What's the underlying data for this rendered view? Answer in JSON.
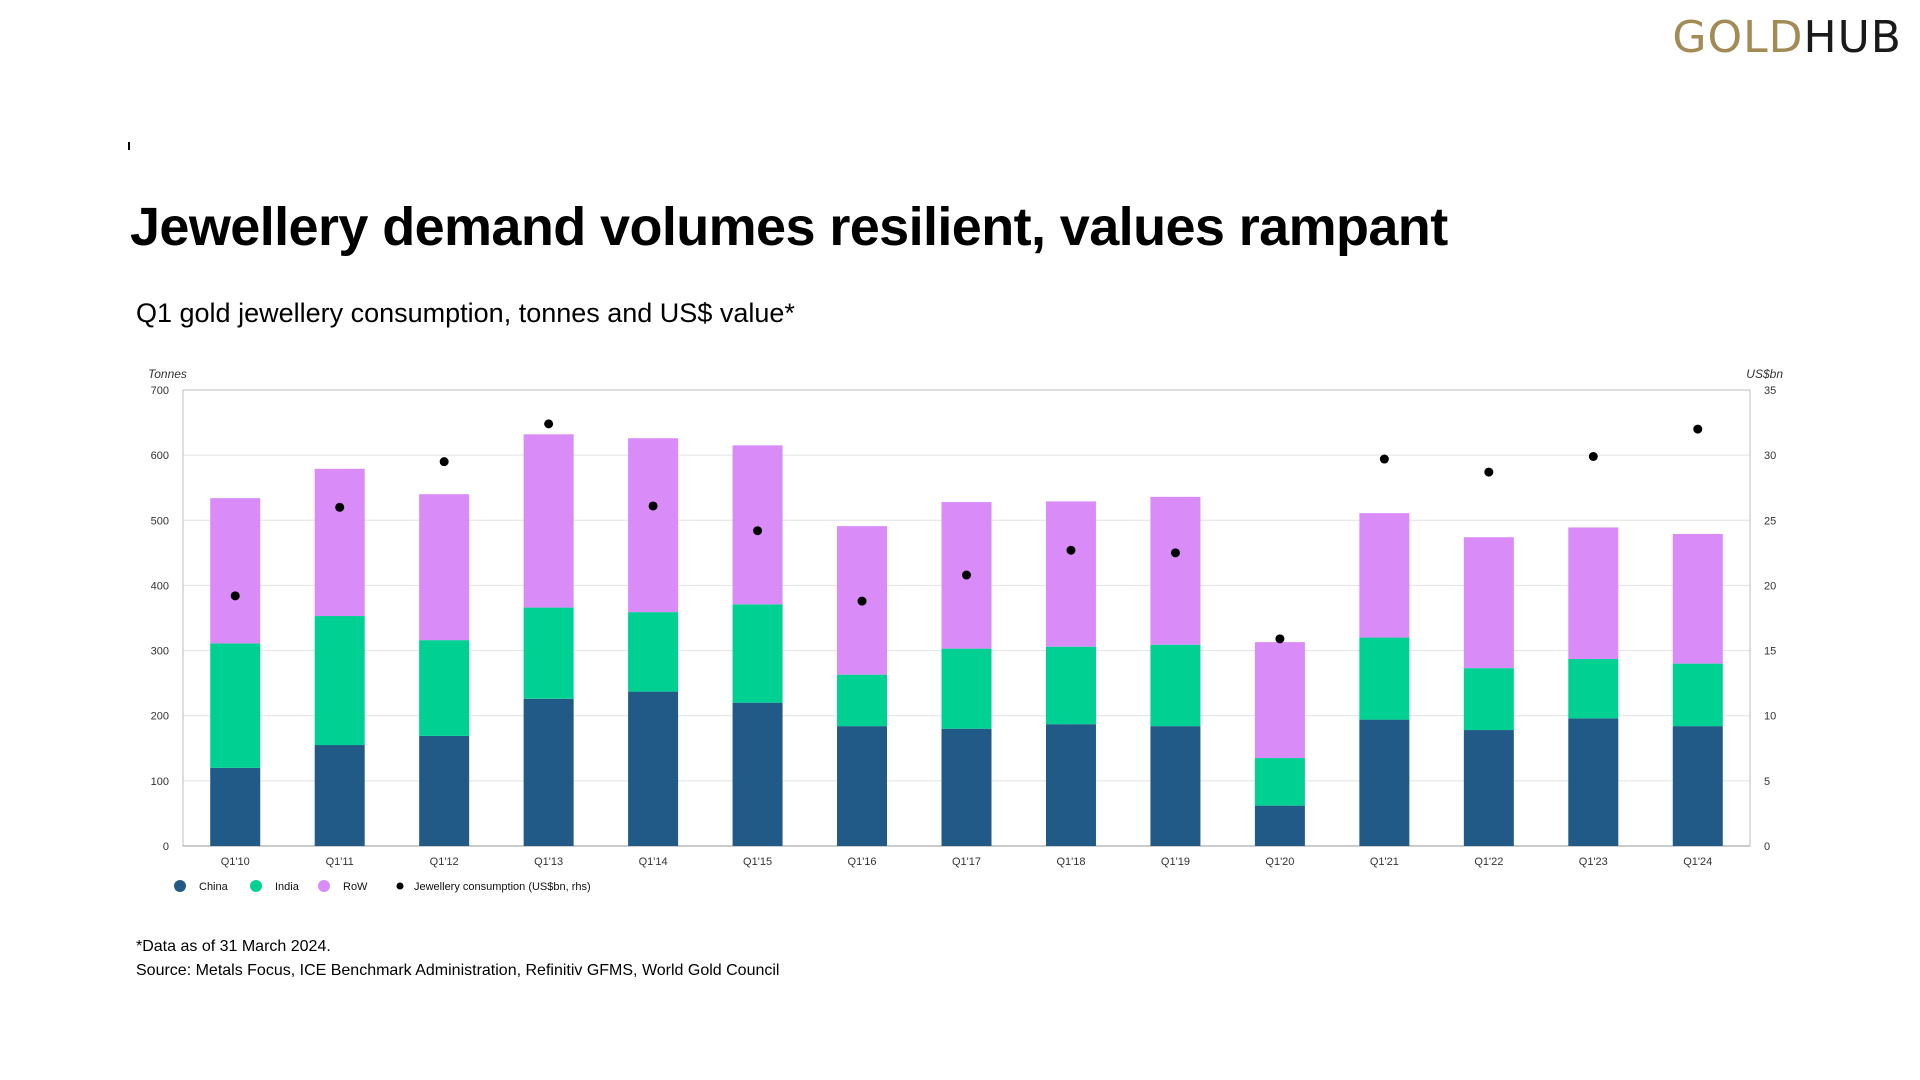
{
  "logo": {
    "part1": "GOLD",
    "part2": "HUB"
  },
  "title": "Jewellery demand volumes resilient, values rampant",
  "subtitle": "Q1 gold jewellery consumption, tonnes and US$ value*",
  "footnotes": {
    "note": "*Data as of 31 March 2024.",
    "source": "Source: Metals Focus, ICE Benchmark Administration, Refinitiv GFMS, World Gold Council"
  },
  "colors": {
    "China": "#215a87",
    "India": "#00d092",
    "RoW": "#d98cf7",
    "dots": "#000000",
    "grid": "#e2e2e2"
  },
  "chart_data": {
    "type": "bar",
    "stacked": true,
    "categories": [
      "Q1'10",
      "Q1'11",
      "Q1'12",
      "Q1'13",
      "Q1'14",
      "Q1'15",
      "Q1'16",
      "Q1'17",
      "Q1'18",
      "Q1'19",
      "Q1'20",
      "Q1'21",
      "Q1'22",
      "Q1'23",
      "Q1'24"
    ],
    "series": [
      {
        "name": "China",
        "values": [
          120,
          155,
          169,
          226,
          237,
          220,
          184,
          180,
          187,
          184,
          62,
          194,
          178,
          196,
          184
        ]
      },
      {
        "name": "India",
        "values": [
          191,
          198,
          147,
          140,
          122,
          151,
          79,
          123,
          119,
          125,
          73,
          126,
          95,
          91,
          96
        ]
      },
      {
        "name": "RoW",
        "values": [
          223,
          226,
          224,
          266,
          267,
          244,
          228,
          225,
          223,
          227,
          178,
          191,
          201,
          202,
          199
        ]
      }
    ],
    "overlay": {
      "type": "scatter",
      "name": "Jewellery consumption (US$bn, rhs)",
      "axis": "right",
      "values": [
        19.2,
        26.0,
        29.5,
        32.4,
        26.1,
        24.2,
        18.8,
        20.8,
        22.7,
        22.5,
        15.9,
        29.7,
        28.7,
        29.9,
        32.0
      ]
    },
    "y_left": {
      "label": "Tonnes",
      "min": 0,
      "max": 700,
      "ticks": [
        "0",
        "100",
        "200",
        "300",
        "400",
        "500",
        "600",
        "700"
      ]
    },
    "y_right": {
      "label": "US$bn",
      "min": 0,
      "max": 35,
      "ticks": [
        "0",
        "5",
        "10",
        "15",
        "20",
        "25",
        "30",
        "35"
      ]
    },
    "legend": [
      "China",
      "India",
      "RoW",
      "Jewellery consumption (US$bn, rhs)"
    ],
    "legend_position": "bottom-left",
    "grid": true
  }
}
